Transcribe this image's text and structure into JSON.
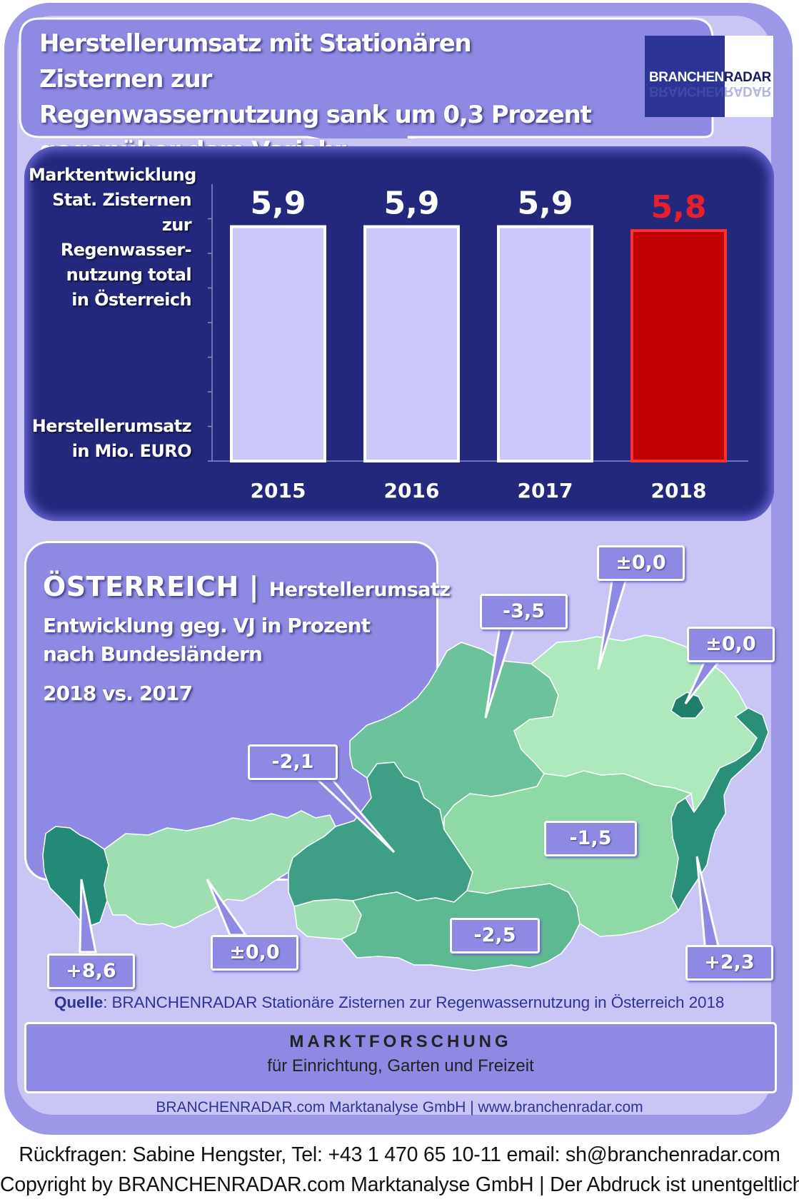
{
  "header": {
    "title_lines": [
      "Herstellerumsatz mit  Stationären Zisternen zur",
      "Regenwassernutzung sank um 0,3 Prozent",
      "gegenüber dem Vorjahr"
    ],
    "logo_text_light": "BRANCHEN",
    "logo_text_dark": "RADAR"
  },
  "chart_data": {
    "type": "bar",
    "categories": [
      "2015",
      "2016",
      "2017",
      "2018"
    ],
    "values": [
      5.9,
      5.9,
      5.9,
      5.8
    ],
    "value_labels": [
      "5,9",
      "5,9",
      "5,9",
      "5,8"
    ],
    "ylabel_top": [
      "Marktentwicklung",
      "Stat. Zisternen zur",
      "Regenwasser-",
      "nutzung total",
      "in Österreich"
    ],
    "ylabel_bottom": [
      "Herstellerumsatz",
      "in Mio. EURO"
    ],
    "colors": {
      "bar": "#cbc9fb",
      "highlight_bar": "#c00000",
      "highlight_label": "#e8202a",
      "label": "#ffffff"
    },
    "highlight_index": 3,
    "grid": false,
    "ylim": [
      0,
      6.0
    ]
  },
  "map": {
    "title": "ÖSTERREICH",
    "title_sub": "Herstellerumsatz",
    "lines": [
      "Entwicklung  geg. VJ in Prozent",
      "nach Bundesländern",
      "2018 vs. 2017"
    ],
    "callouts": [
      {
        "name": "niederoesterreich",
        "value": "±0,0"
      },
      {
        "name": "oberoesterreich",
        "value": "-3,5"
      },
      {
        "name": "wien",
        "value": "±0,0"
      },
      {
        "name": "salzburg",
        "value": "-2,1"
      },
      {
        "name": "steiermark",
        "value": "-1,5"
      },
      {
        "name": "vorarlberg",
        "value": "+8,6"
      },
      {
        "name": "tirol",
        "value": "±0,0"
      },
      {
        "name": "kaernten",
        "value": "-2,5"
      },
      {
        "name": "burgenland",
        "value": "+2,3"
      }
    ]
  },
  "source": {
    "label": "Quelle",
    "text": ": BRANCHENRADAR Stationäre Zisternen zur Regenwassernutzung in Österreich 2018"
  },
  "footer": {
    "heading": "MARKTFORSCHUNG",
    "sub": "für Einrichtung, Garten und Freizeit",
    "company": "BRANCHENRADAR.com Marktanalyse GmbH | www.branchenradar.com",
    "contact": "Rückfragen: Sabine Hengster, Tel: +43 1 470 65 10-11 email: sh@branchenradar.com",
    "copyright": "Copyright by BRANCHENRADAR.com  Marktanalyse GmbH | Der Abdruck ist unentgeltlich."
  }
}
